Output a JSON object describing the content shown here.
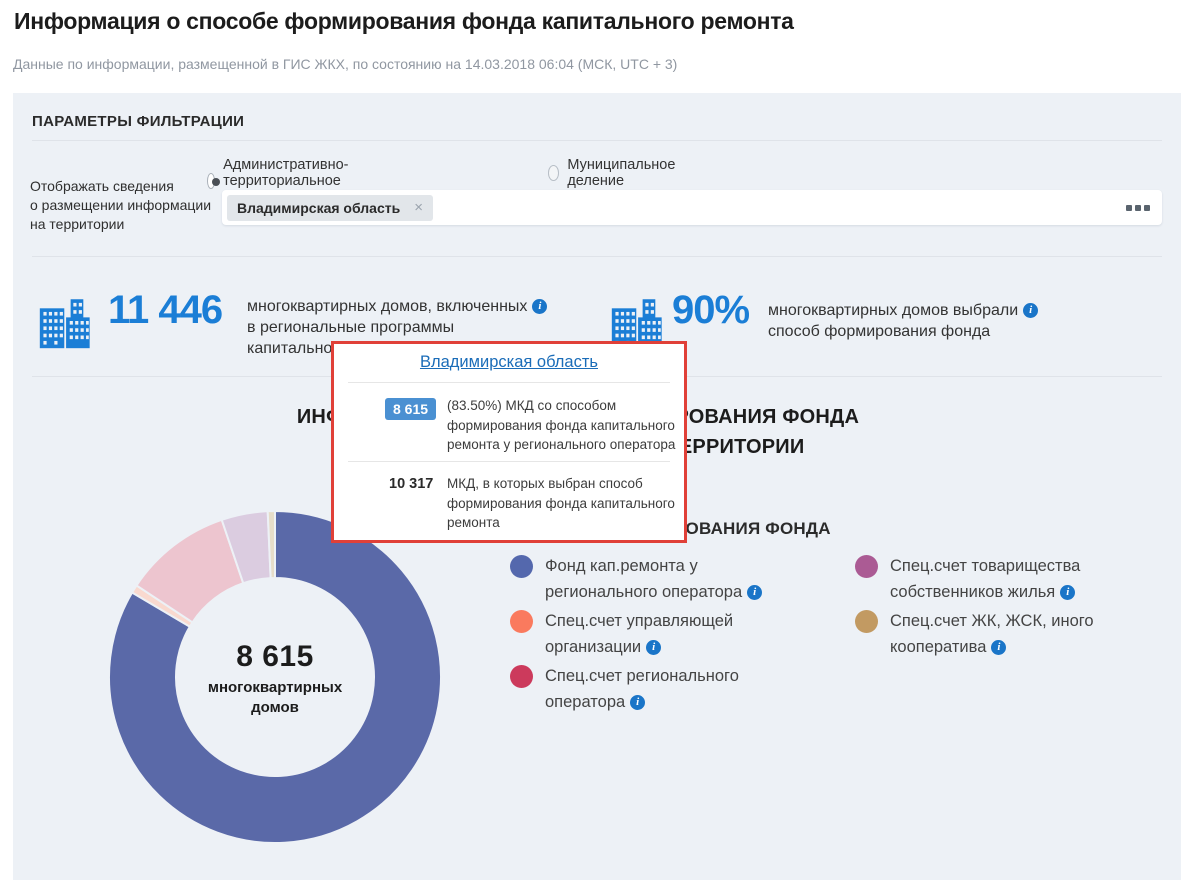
{
  "page": {
    "title": "Информация о способе формирования фонда капитального ремонта",
    "subtitle": "Данные по информации, размещенной в ГИС ЖКХ, по состоянию на 14.03.2018 06:04 (МСК, UTC + 3)"
  },
  "icons": {
    "info": "i",
    "close": "×"
  },
  "filters": {
    "heading": "ПАРАМЕТРЫ ФИЛЬТРАЦИИ",
    "radio_options": [
      {
        "label": "Административно-территориальное деление",
        "selected": true
      },
      {
        "label": "Муниципальное деление",
        "selected": false
      }
    ],
    "territory_label_lines": [
      "Отображать сведения",
      "о размещении информации",
      "на территории"
    ],
    "territory_tag": "Владимирская область"
  },
  "stats": [
    {
      "value": "11 446",
      "lines": [
        "многоквартирных домов, включенных",
        "в региональные программы",
        "капитального ремонта"
      ]
    },
    {
      "value": "90%",
      "lines": [
        "многоквартирных домов выбрали",
        "способ формирования фонда"
      ]
    }
  ],
  "section": {
    "heading_line1": "ИНФОРМАЦИЯ О СПОСОБАХ ФОРМИРОВАНИЯ ФОНДА",
    "heading_line2": "КАПИТАЛЬНОГО РЕМОНТА НА ТЕРРИТОРИИ"
  },
  "tooltip": {
    "region_link": "Владимирская область",
    "border_color": "#e04038",
    "rows": [
      {
        "badge": "8 615",
        "text": "(83.50%) МКД со способом формирования фонда капитального ремонта у регионального оператора"
      },
      {
        "badge": "10 317",
        "text": "МКД, в которых выбран способ формирования фонда капитального ремонта"
      }
    ]
  },
  "chart_data": {
    "type": "pie",
    "subtype": "donut",
    "title": "ИНФОРМАЦИЯ О СПОСОБАХ ФОРМИРОВАНИЯ ФОНДА КАПИТАЛЬНОГО РЕМОНТА НА ТЕРРИТОРИИ",
    "legend_title": "СПОСОБЫ ФОРМИРОВАНИЯ ФОНДА",
    "legend_position": "right",
    "center_value": "8 615",
    "center_label_lines": [
      "многоквартирных",
      "домов"
    ],
    "total_selected_mkd": "10 317",
    "segments": [
      {
        "label": "Фонд кап.ремонта у регионального оператора",
        "percent": 83.5,
        "legend_color": "#5468ad",
        "slice_color": "#5a69a8",
        "highlighted": true
      },
      {
        "label": "Спец.счет управляющей организации",
        "percent": 0.8,
        "legend_color": "#fa7a5e",
        "slice_color": "#f9d9cf",
        "highlighted": false
      },
      {
        "label": "Спец.счет регионального оператора",
        "percent": 10.5,
        "legend_color": "#cc3a5c",
        "slice_color": "#edc5cf",
        "highlighted": false
      },
      {
        "label": "Спец.счет товарищества собственников жилья",
        "percent": 4.5,
        "legend_color": "#ab5b94",
        "slice_color": "#dbcce0",
        "highlighted": false
      },
      {
        "label": "Спец.счет ЖК, ЖСК, иного кооператива",
        "percent": 0.7,
        "legend_color": "#c29a62",
        "slice_color": "#e6ddc9",
        "highlighted": false
      }
    ]
  }
}
